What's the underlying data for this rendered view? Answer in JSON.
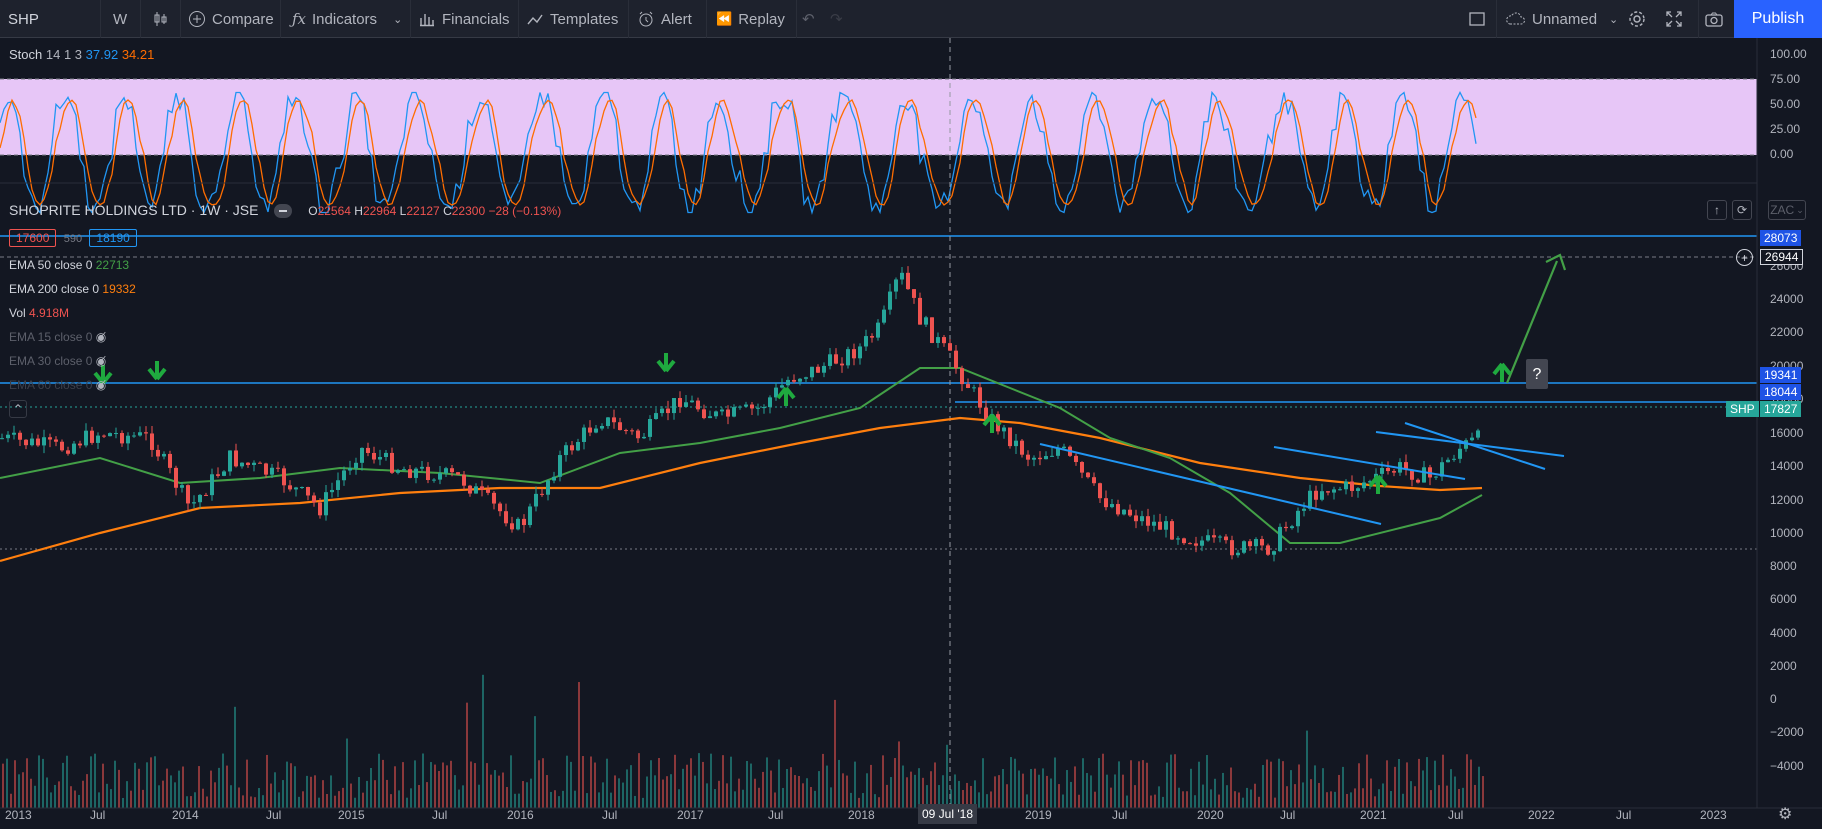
{
  "toolbar": {
    "symbol": "SHP",
    "interval": "W",
    "compare": "Compare",
    "indicators": "Indicators",
    "financials": "Financials",
    "templates": "Templates",
    "alert": "Alert",
    "replay": "Replay",
    "layout_name": "Unnamed",
    "publish": "Publish"
  },
  "stoch": {
    "name": "Stoch",
    "params": "14 1 3",
    "k": "37.92",
    "d": "34.21",
    "levels": [
      "100.00",
      "75.00",
      "50.00",
      "25.00",
      "0.00"
    ]
  },
  "legend": {
    "title": "SHOPRITE HOLDINGS LTD · 1W · JSE",
    "ohlc": {
      "o_label": "O",
      "o": "22564",
      "h_label": "H",
      "h": "22964",
      "l_label": "L",
      "l": "22127",
      "c_label": "C",
      "c": "22300",
      "chg": "−28 (−0.13%)"
    },
    "sell": "17600",
    "spread": "590",
    "buy": "18190",
    "ema50": {
      "name": "EMA 50 close 0",
      "value": "22713"
    },
    "ema200": {
      "name": "EMA 200 close 0",
      "value": "19332"
    },
    "vol": {
      "name": "Vol",
      "value": "4.918M"
    },
    "ema15": "EMA 15 close 0",
    "ema30": "EMA 30 close 0",
    "ema60": "EMA 60 close 0"
  },
  "price_scale": {
    "currency": "ZAC",
    "labels": [
      "26000",
      "24000",
      "22000",
      "20000",
      "18000",
      "16000",
      "14000",
      "12000",
      "10000",
      "8000",
      "6000",
      "4000",
      "2000",
      "0",
      "−2000",
      "−4000"
    ],
    "badges": {
      "top": "28073",
      "target": "26944",
      "resistance": "19341",
      "h2": "18044",
      "last_symbol": "SHP",
      "last": "17827"
    }
  },
  "time_axis": {
    "labels": [
      "2013",
      "Jul",
      "2014",
      "Jul",
      "2015",
      "Jul",
      "2016",
      "Jul",
      "2017",
      "Jul",
      "2018",
      "2019",
      "Jul",
      "2020",
      "Jul",
      "2021",
      "Jul",
      "2022",
      "Jul",
      "2023"
    ],
    "crosshair_date": "09 Jul '18"
  },
  "annotation": "?",
  "colors": {
    "up": "#26a69a",
    "down": "#ef5350",
    "ema50": "#43a047",
    "ema200": "#ff7f0e",
    "stoch_k": "#2196f3",
    "stoch_d": "#ff6d00",
    "band": "#e7c6f7",
    "line": "#2196f3",
    "bg": "#131722"
  }
}
